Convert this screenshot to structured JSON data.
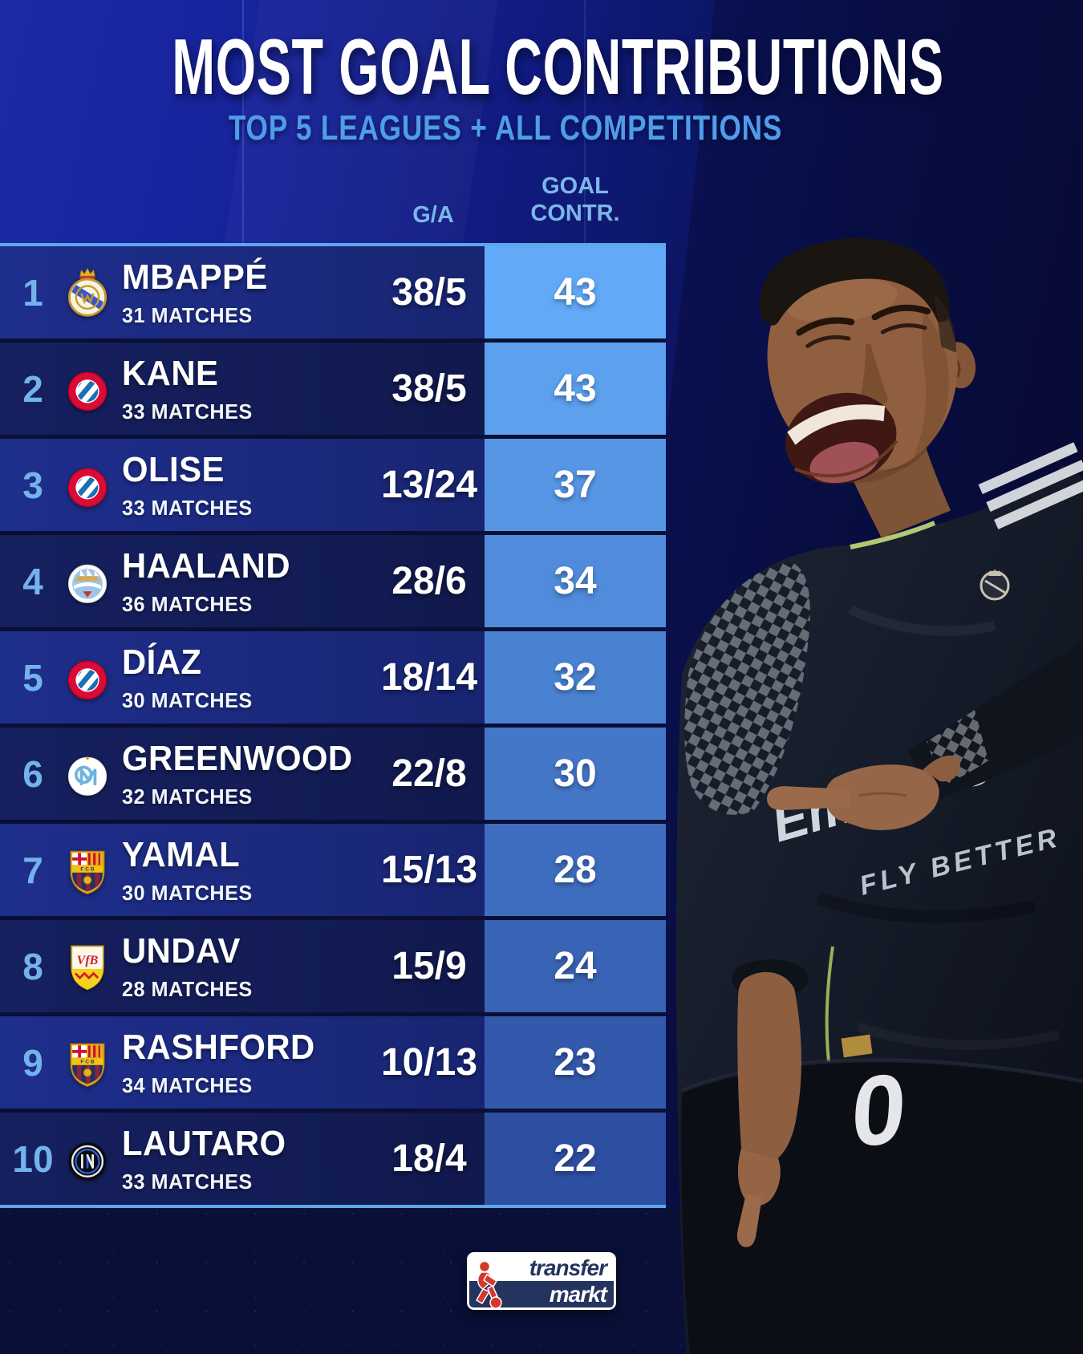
{
  "chart_data": {
    "type": "table",
    "title": "MOST GOAL CONTRIBUTIONS",
    "subtitle": "TOP 5 LEAGUES + ALL COMPETITIONS",
    "columns": {
      "ga": "G/A",
      "contr_line1": "GOAL",
      "contr_line2": "CONTR."
    },
    "players": [
      {
        "rank": "1",
        "name": "MBAPPÉ",
        "matches": "31 MATCHES",
        "ga": "38/5",
        "contr": "43",
        "club_id": "real-madrid",
        "club": "Real Madrid"
      },
      {
        "rank": "2",
        "name": "KANE",
        "matches": "33 MATCHES",
        "ga": "38/5",
        "contr": "43",
        "club_id": "bayern",
        "club": "Bayern Munich"
      },
      {
        "rank": "3",
        "name": "OLISE",
        "matches": "33 MATCHES",
        "ga": "13/24",
        "contr": "37",
        "club_id": "bayern",
        "club": "Bayern Munich"
      },
      {
        "rank": "4",
        "name": "HAALAND",
        "matches": "36 MATCHES",
        "ga": "28/6",
        "contr": "34",
        "club_id": "man-city",
        "club": "Manchester City"
      },
      {
        "rank": "5",
        "name": "DÍAZ",
        "matches": "30 MATCHES",
        "ga": "18/14",
        "contr": "32",
        "club_id": "bayern",
        "club": "Bayern Munich"
      },
      {
        "rank": "6",
        "name": "GREENWOOD",
        "matches": "32 MATCHES",
        "ga": "22/8",
        "contr": "30",
        "club_id": "marseille",
        "club": "Marseille"
      },
      {
        "rank": "7",
        "name": "YAMAL",
        "matches": "30 MATCHES",
        "ga": "15/13",
        "contr": "28",
        "club_id": "barcelona",
        "club": "FC Barcelona"
      },
      {
        "rank": "8",
        "name": "UNDAV",
        "matches": "28 MATCHES",
        "ga": "15/9",
        "contr": "24",
        "club_id": "stuttgart",
        "club": "VfB Stuttgart"
      },
      {
        "rank": "9",
        "name": "RASHFORD",
        "matches": "34 MATCHES",
        "ga": "10/13",
        "contr": "23",
        "club_id": "barcelona",
        "club": "FC Barcelona"
      },
      {
        "rank": "10",
        "name": "LAUTARO",
        "matches": "33 MATCHES",
        "ga": "18/4",
        "contr": "22",
        "club_id": "inter",
        "club": "Inter Milan"
      }
    ]
  },
  "photo": {
    "jersey_sponsor": "Emirates",
    "jersey_slogan": "FLY BETTER",
    "shorts_number": "0"
  },
  "footer": {
    "logo_top": "transfer",
    "logo_bottom": "markt"
  },
  "colors": {
    "accent_light_blue": "#72b3ec",
    "subtitle_blue": "#4f9de9",
    "table_border_line": "#5ea7ea",
    "contr_cell_top": "#62aaf8",
    "contr_cell_bottom": "#2d4fa2",
    "row_odd": "#1a2878",
    "row_even": "#121b52",
    "logo_red": "#d6382c",
    "logo_navy": "#25335f"
  }
}
